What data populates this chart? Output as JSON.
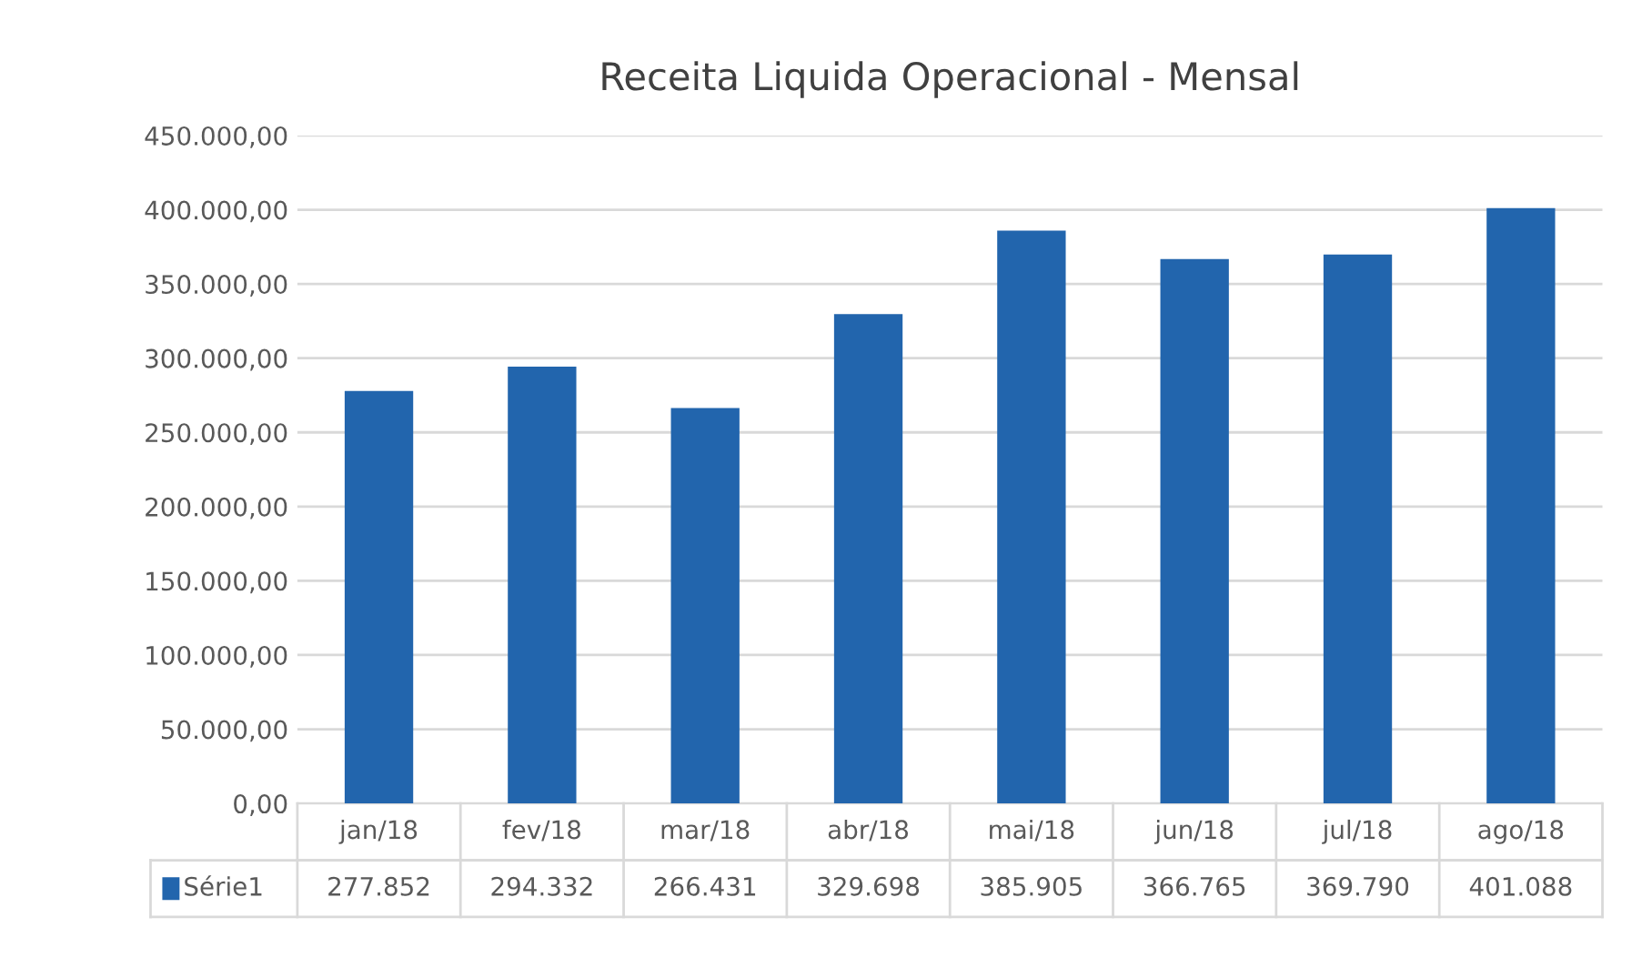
{
  "chart_data": {
    "type": "bar",
    "title": "Receita Liquida Operacional - Mensal",
    "categories": [
      "jan/18",
      "fev/18",
      "mar/18",
      "abr/18",
      "mai/18",
      "jun/18",
      "jul/18",
      "ago/18"
    ],
    "series": [
      {
        "name": "Série1",
        "color": "#2265ad",
        "values": [
          277852,
          294332,
          266431,
          329698,
          385905,
          366765,
          369790,
          401088
        ],
        "value_labels": [
          "277.852",
          "294.332",
          "266.431",
          "329.698",
          "385.905",
          "366.765",
          "369.790",
          "401.088"
        ]
      }
    ],
    "ylim": [
      0,
      450000
    ],
    "yticks": [
      {
        "value": 0,
        "label": "0,00"
      },
      {
        "value": 50000,
        "label": "50.000,00"
      },
      {
        "value": 100000,
        "label": "100.000,00"
      },
      {
        "value": 150000,
        "label": "150.000,00"
      },
      {
        "value": 200000,
        "label": "200.000,00"
      },
      {
        "value": 250000,
        "label": "250.000,00"
      },
      {
        "value": 300000,
        "label": "300.000,00"
      },
      {
        "value": 350000,
        "label": "350.000,00"
      },
      {
        "value": 400000,
        "label": "400.000,00"
      },
      {
        "value": 450000,
        "label": "450.000,00"
      }
    ],
    "grid": "y"
  }
}
